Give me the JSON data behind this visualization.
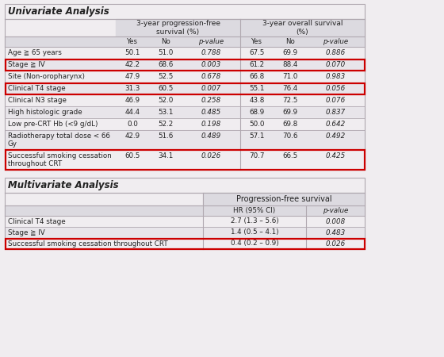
{
  "background_color": "#f0edf0",
  "red_border_color": "#cc0000",
  "univariate_title": "Univariate Analysis",
  "multivariate_title": "Multivariate Analysis",
  "uni_col_headers": [
    "Yes",
    "No",
    "p-value",
    "Yes",
    "No",
    "p-value"
  ],
  "uni_group_header1": "3-year progression-free\nsurvival (%)",
  "uni_group_header2": "3-year overall survival\n(%)",
  "uni_rows": [
    [
      "Age ≧ 65 years",
      "50.1",
      "51.0",
      "0.788",
      "67.5",
      "69.9",
      "0.886",
      false
    ],
    [
      "Stage ≧ IV",
      "42.2",
      "68.6",
      "0.003",
      "61.2",
      "88.4",
      "0.070",
      true
    ],
    [
      "Site (Non-oropharynx)",
      "47.9",
      "52.5",
      "0.678",
      "66.8",
      "71.0",
      "0.983",
      false
    ],
    [
      "Clinical T4 stage",
      "31.3",
      "60.5",
      "0.007",
      "55.1",
      "76.4",
      "0.056",
      true
    ],
    [
      "Clinical N3 stage",
      "46.9",
      "52.0",
      "0.258",
      "43.8",
      "72.5",
      "0.076",
      false
    ],
    [
      "High histologic grade",
      "44.4",
      "53.1",
      "0.485",
      "68.9",
      "69.9",
      "0.837",
      false
    ],
    [
      "Low pre-CRT Hb (<9 g/dL)",
      "0.0",
      "52.2",
      "0.198",
      "50.0",
      "69.8",
      "0.642",
      false
    ],
    [
      "Radiotherapy total dose < 66\nGy",
      "42.9",
      "51.6",
      "0.489",
      "57.1",
      "70.6",
      "0.492",
      false
    ],
    [
      "Successful smoking cessation\nthroughout CRT",
      "60.5",
      "34.1",
      "0.026",
      "70.7",
      "66.5",
      "0.425",
      true
    ]
  ],
  "multi_group_header": "Progression-free survival",
  "multi_col_headers": [
    "HR (95% CI)",
    "p-value"
  ],
  "multi_rows": [
    [
      "Clinical T4 stage",
      "2.7 (1.3 – 5.6)",
      "0.008",
      false
    ],
    [
      "Stage ≧ IV",
      "1.4 (0.5 – 4.1)",
      "0.483",
      false
    ],
    [
      "Successful smoking cessation throughout CRT",
      "0.4 (0.2 – 0.9)",
      "0.026",
      true
    ]
  ],
  "header_bg": "#dcdae0",
  "row_bg_even": "#f0edf0",
  "row_bg_odd": "#e8e5ea",
  "line_color": "#b0a8b0",
  "text_color": "#222222"
}
